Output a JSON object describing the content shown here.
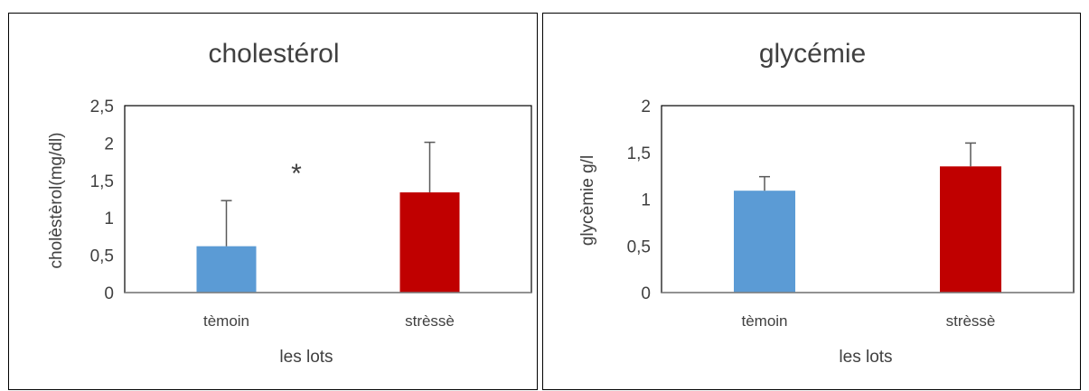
{
  "charts": [
    {
      "title": "cholestérol",
      "ylabel": "cholèstèrol(mg/dl)",
      "xlabel": "les lots",
      "annotation": "*"
    },
    {
      "title": "glycémie",
      "ylabel": "glycèmie g/l",
      "xlabel": "les lots",
      "annotation": ""
    }
  ],
  "colors": {
    "temoin": "#5b9bd5",
    "stresse": "#c00000",
    "axis": "#000000",
    "errorbar": "#595959",
    "text": "#404040"
  },
  "chart_data": [
    {
      "type": "bar",
      "title": "cholestérol",
      "xlabel": "les lots",
      "ylabel": "cholèstèrol(mg/dl)",
      "categories": [
        "tèmoin",
        "strèssè"
      ],
      "values": [
        0.62,
        1.34
      ],
      "errors": [
        0.61,
        0.67
      ],
      "ylim": [
        0,
        2.5
      ],
      "yticks": [
        0,
        0.5,
        1,
        1.5,
        2,
        2.5
      ],
      "ytick_labels": [
        "0",
        "0,5",
        "1",
        "1,5",
        "2",
        "2,5"
      ],
      "grid": false,
      "annotations": [
        "*"
      ]
    },
    {
      "type": "bar",
      "title": "glycémie",
      "xlabel": "les lots",
      "ylabel": "glycèmie g/l",
      "categories": [
        "tèmoin",
        "strèssè"
      ],
      "values": [
        1.09,
        1.35
      ],
      "errors": [
        0.15,
        0.25
      ],
      "ylim": [
        0,
        2
      ],
      "yticks": [
        0,
        0.5,
        1,
        1.5,
        2
      ],
      "ytick_labels": [
        "0",
        "0,5",
        "1",
        "1,5",
        "2"
      ],
      "grid": false,
      "annotations": []
    }
  ]
}
